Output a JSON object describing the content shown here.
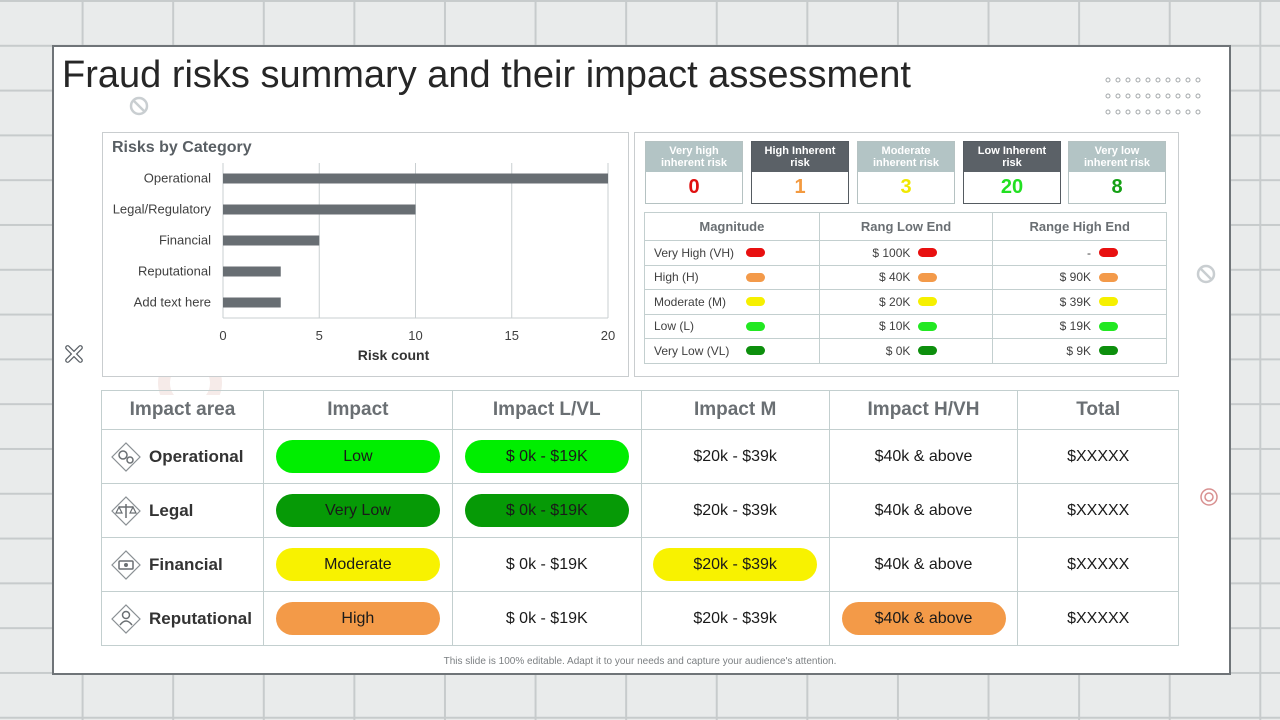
{
  "title": "Fraud risks summary and their impact assessment",
  "chart_data": {
    "type": "bar",
    "orientation": "horizontal",
    "title": "Risks by Category",
    "categories": [
      "Operational",
      "Legal/Regulatory",
      "Financial",
      "Reputational",
      "Add text here"
    ],
    "values": [
      20,
      10,
      5,
      3,
      3
    ],
    "xlabel": "Risk count",
    "xlim": [
      0,
      20
    ],
    "xticks": [
      0,
      5,
      10,
      15,
      20
    ],
    "bar_color": "#686e73",
    "grid": true
  },
  "kpis": [
    {
      "label": "Very high inherent risk",
      "value": "0",
      "head_color": "#b3c4c5",
      "value_color": "#e01010"
    },
    {
      "label": "High Inherent risk",
      "value": "1",
      "head_color": "#5b6167",
      "value_color": "#f39a40"
    },
    {
      "label": "Moderate inherent risk",
      "value": "3",
      "head_color": "#b3c4c5",
      "value_color": "#f0e800"
    },
    {
      "label": "Low Inherent risk",
      "value": "20",
      "head_color": "#5b6167",
      "value_color": "#22e022"
    },
    {
      "label": "Very low inherent risk",
      "value": "8",
      "head_color": "#b3c4c5",
      "value_color": "#14a014"
    }
  ],
  "magnitude": {
    "headers": [
      "Magnitude",
      "Rang Low  End",
      "Range High  End"
    ],
    "rows": [
      {
        "label": "Very High (VH)",
        "low": "$ 100K",
        "high": "-",
        "color": "#e81010"
      },
      {
        "label": "High (H)",
        "low": "$ 40K",
        "high": "$ 90K",
        "color": "#f39a4a"
      },
      {
        "label": "Moderate (M)",
        "low": "$ 20K",
        "high": "$ 39K",
        "color": "#f6f000"
      },
      {
        "label": "Low (L)",
        "low": "$ 10K",
        "high": "$ 19K",
        "color": "#22e822"
      },
      {
        "label": "Very Low (VL)",
        "low": "$ 0K",
        "high": "$ 9K",
        "color": "#0d8f0d"
      }
    ]
  },
  "impact": {
    "headers": [
      "Impact area",
      "Impact",
      "Impact L/VL",
      "Impact M",
      "Impact H/VH",
      "Total"
    ],
    "rows": [
      {
        "area": "Operational",
        "icon": "gears-icon",
        "impact": "Low",
        "impact_color": "#00ee00",
        "lvl": "$ 0k - $19K",
        "lvl_color": "#00ee00",
        "m": "$20k - $39k",
        "m_color": "",
        "h": "$40k & above",
        "h_color": "",
        "total": "$XXXXX"
      },
      {
        "area": "Legal",
        "icon": "scales-icon",
        "impact": "Very Low",
        "impact_color": "#069a06",
        "lvl": "$ 0k - $19K",
        "lvl_color": "#069a06",
        "m": "$20k - $39k",
        "m_color": "",
        "h": "$40k & above",
        "h_color": "",
        "total": "$XXXXX"
      },
      {
        "area": "Financial",
        "icon": "money-icon",
        "impact": "Moderate",
        "impact_color": "#f8f200",
        "lvl": "$ 0k - $19K",
        "lvl_color": "",
        "m": "$20k - $39k",
        "m_color": "#f8f200",
        "h": "$40k & above",
        "h_color": "",
        "total": "$XXXXX"
      },
      {
        "area": "Reputational",
        "icon": "person-icon",
        "impact": "High",
        "impact_color": "#f39a48",
        "lvl": "$ 0k - $19K",
        "lvl_color": "",
        "m": "$20k - $39k",
        "m_color": "",
        "h": "$40k & above",
        "h_color": "#f39a48",
        "total": "$XXXXX"
      }
    ]
  },
  "footer": "This slide is 100% editable. Adapt it to your needs and capture your audience's attention."
}
